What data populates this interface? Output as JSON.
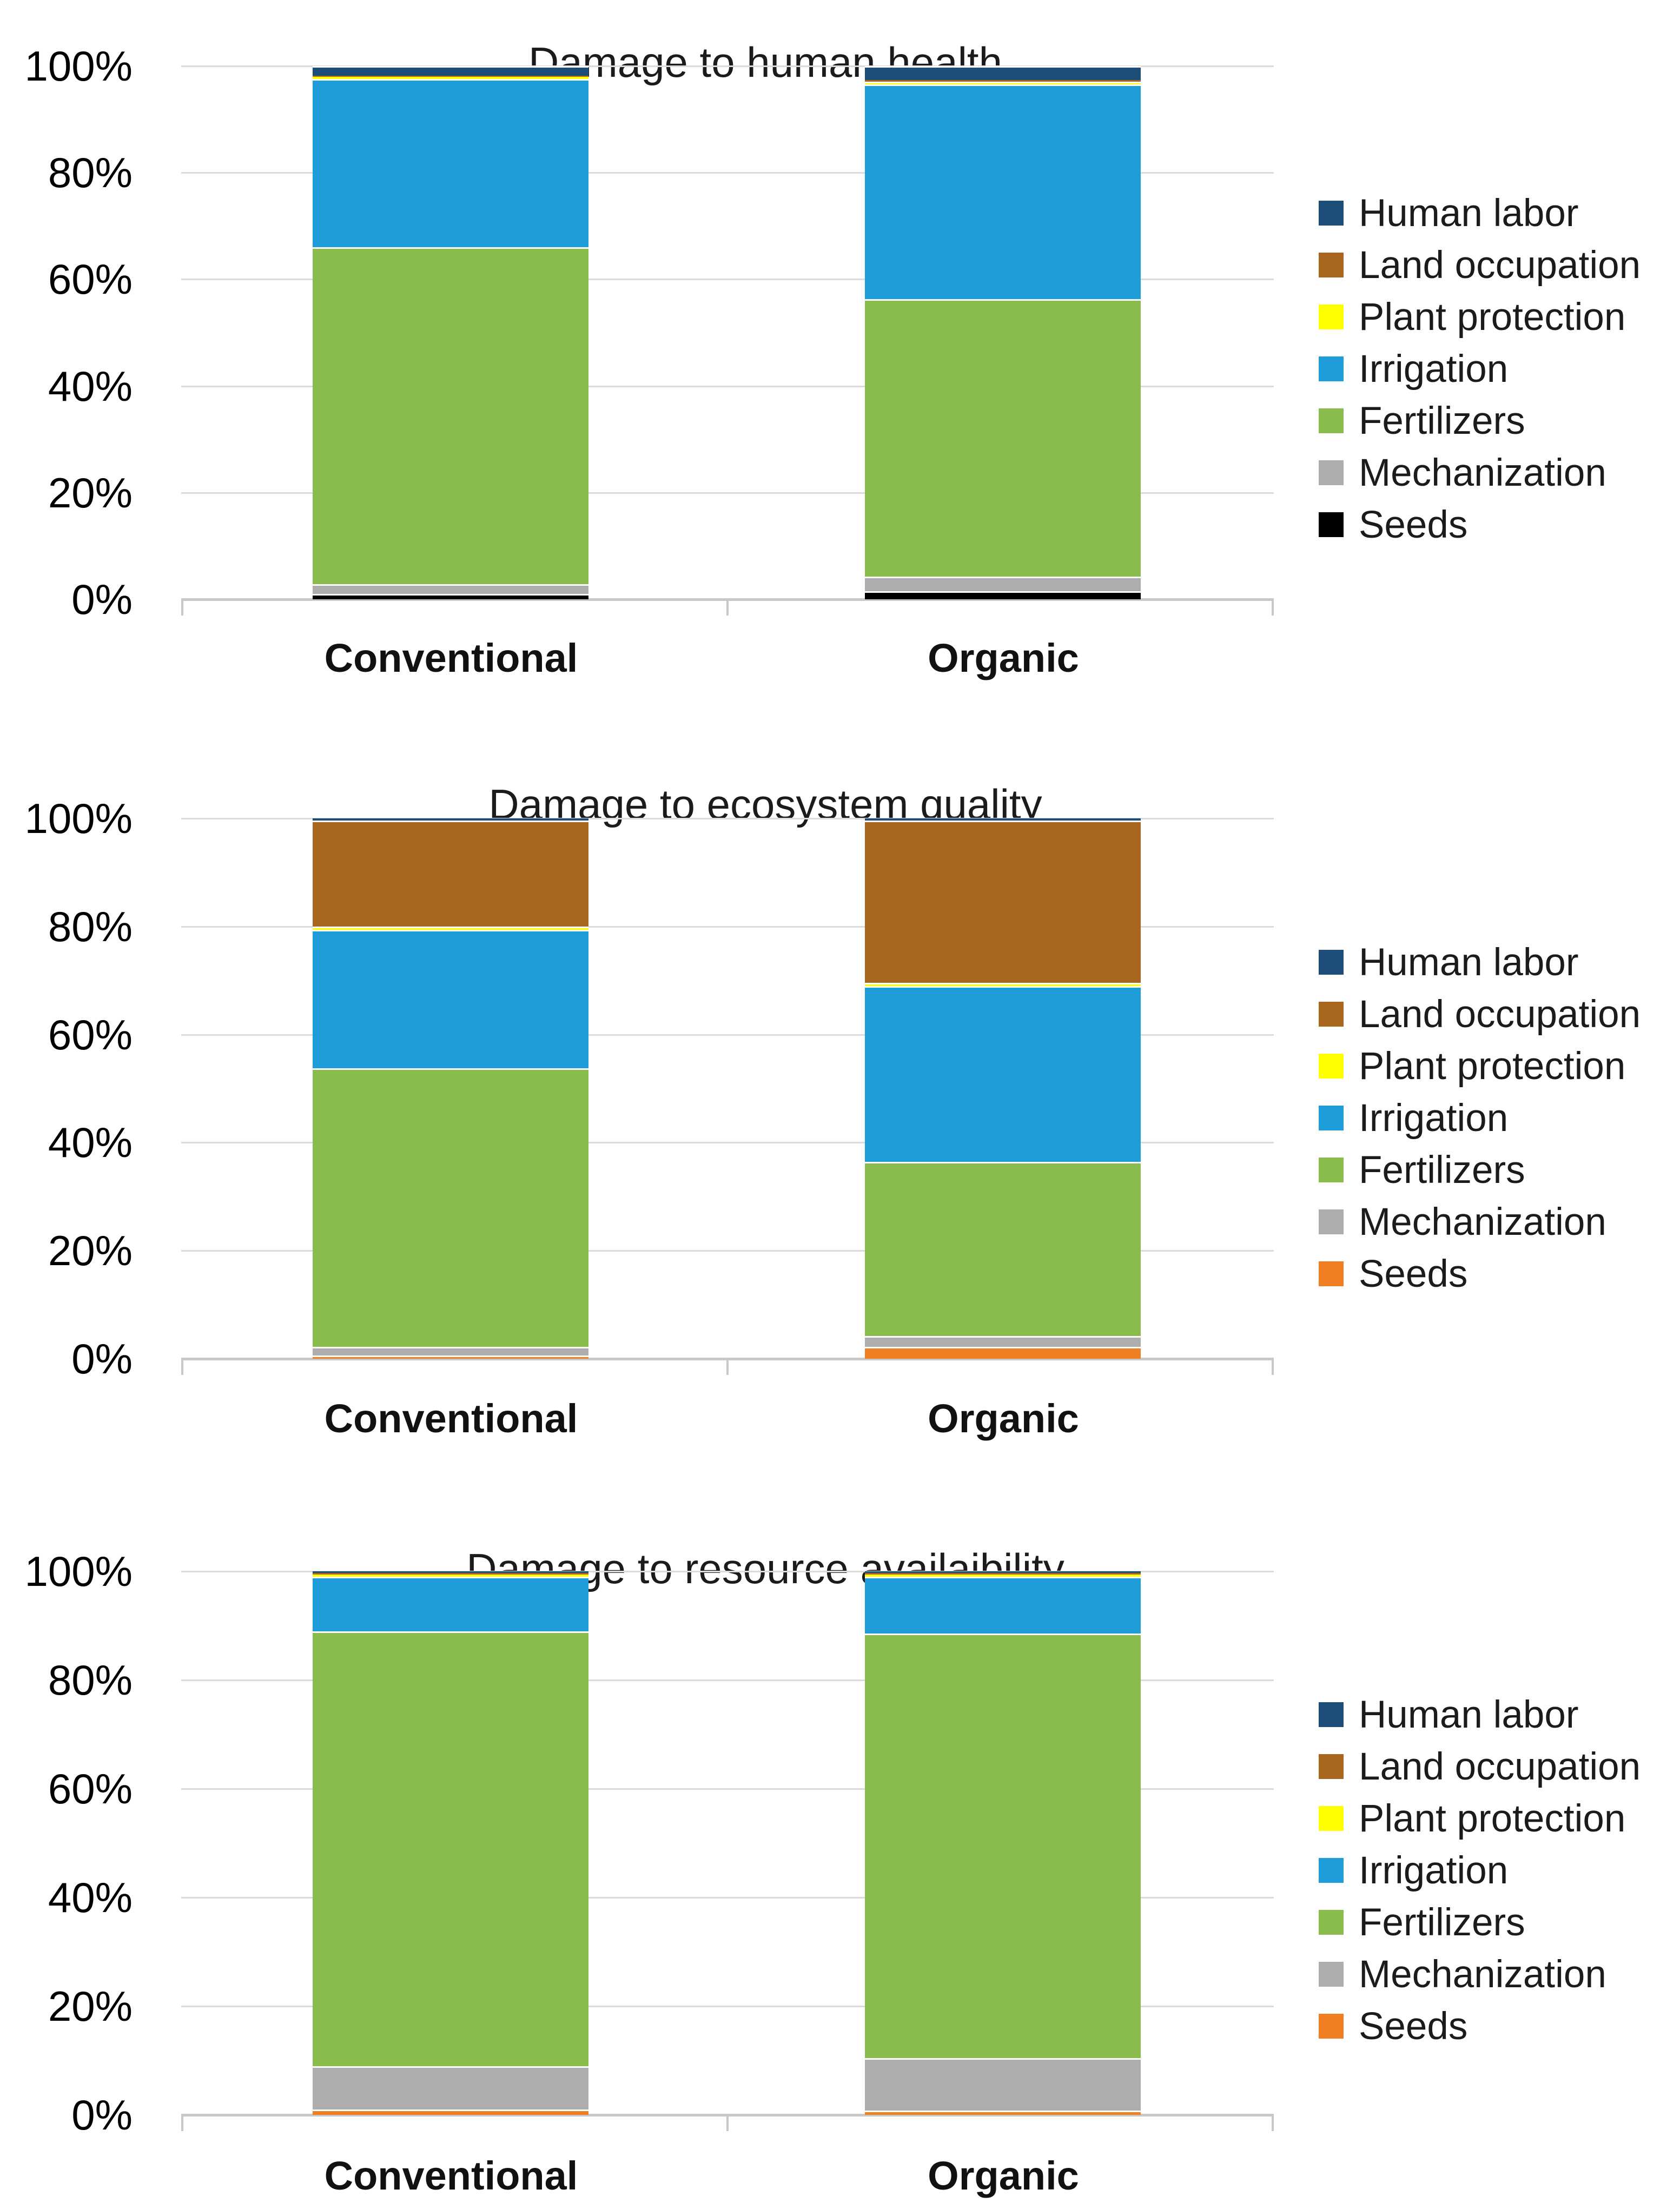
{
  "figure": {
    "background": "#ffffff"
  },
  "y_axis_ticks": [
    "100%",
    "80%",
    "60%",
    "40%",
    "20%",
    "0%"
  ],
  "categories": [
    "Conventional",
    "Organic"
  ],
  "legend_items": [
    "Human labor",
    "Land occupation",
    "Plant protection",
    "Irrigation",
    "Fertilizers",
    "Mechanization",
    "Seeds"
  ],
  "colors": {
    "human_labor": "#1C4E79",
    "land_occupation": "#A9661F",
    "plant_protection": "#FFFF00",
    "irrigation": "#1F9DD9",
    "fertilizers": "#8ABB4D",
    "mechanization": "#ADADAD",
    "seeds_chart1": "#000000",
    "seeds_chart2_3": "#F07E23",
    "gridline": "#DBDBDB",
    "axis_line": "#C8C8C8"
  },
  "chart_data": [
    {
      "type": "bar",
      "stacked": true,
      "stack_order": "first-series-on-top",
      "title": "Damage to human health",
      "categories": [
        "Conventional",
        "Organic"
      ],
      "units": "percent of total",
      "ylim": [
        0,
        100
      ],
      "grid": "horizontal",
      "legend_position": "right",
      "series": [
        {
          "name": "Human labor",
          "color": "#1C4E79",
          "values": [
            1.8,
            2.6
          ]
        },
        {
          "name": "Land occupation",
          "color": "#A9661F",
          "values": [
            0.2,
            0.3
          ]
        },
        {
          "name": "Plant protection",
          "color": "#FFFF00",
          "values": [
            0.4,
            0.6
          ]
        },
        {
          "name": "Irrigation",
          "color": "#1F9DD9",
          "values": [
            31.6,
            40.2
          ]
        },
        {
          "name": "Fertilizers",
          "color": "#8ABB4D",
          "values": [
            63.2,
            52.0
          ]
        },
        {
          "name": "Mechanization",
          "color": "#ADADAD",
          "values": [
            1.8,
            2.8
          ]
        },
        {
          "name": "Seeds",
          "color": "#000000",
          "values": [
            1.0,
            1.5
          ]
        }
      ]
    },
    {
      "type": "bar",
      "stacked": true,
      "stack_order": "first-series-on-top",
      "title": "Damage to ecosystem quality",
      "categories": [
        "Conventional",
        "Organic"
      ],
      "units": "percent of total",
      "ylim": [
        0,
        100
      ],
      "grid": "horizontal",
      "legend_position": "right",
      "series": [
        {
          "name": "Human labor",
          "color": "#1C4E79",
          "values": [
            0.4,
            0.4
          ]
        },
        {
          "name": "Land occupation",
          "color": "#A9661F",
          "values": [
            19.6,
            30.0
          ]
        },
        {
          "name": "Plant protection",
          "color": "#FFFF00",
          "values": [
            0.6,
            0.6
          ]
        },
        {
          "name": "Irrigation",
          "color": "#1F9DD9",
          "values": [
            25.6,
            32.6
          ]
        },
        {
          "name": "Fertilizers",
          "color": "#8ABB4D",
          "values": [
            51.6,
            32.2
          ]
        },
        {
          "name": "Mechanization",
          "color": "#ADADAD",
          "values": [
            1.6,
            2.0
          ]
        },
        {
          "name": "Seeds",
          "color": "#F07E23",
          "values": [
            0.6,
            2.2
          ]
        }
      ]
    },
    {
      "type": "bar",
      "stacked": true,
      "stack_order": "first-series-on-top",
      "title": "Damage to resource availaibility",
      "categories": [
        "Conventional",
        "Organic"
      ],
      "units": "percent of total",
      "ylim": [
        0,
        100
      ],
      "grid": "horizontal",
      "legend_position": "right",
      "series": [
        {
          "name": "Human labor",
          "color": "#1C4E79",
          "values": [
            0.3,
            0.3
          ]
        },
        {
          "name": "Land occupation",
          "color": "#A9661F",
          "values": [
            0.3,
            0.3
          ]
        },
        {
          "name": "Plant protection",
          "color": "#FFFF00",
          "values": [
            0.4,
            0.4
          ]
        },
        {
          "name": "Irrigation",
          "color": "#1F9DD9",
          "values": [
            10.0,
            10.4
          ]
        },
        {
          "name": "Fertilizers",
          "color": "#8ABB4D",
          "values": [
            80.0,
            78.2
          ]
        },
        {
          "name": "Mechanization",
          "color": "#ADADAD",
          "values": [
            8.0,
            9.6
          ]
        },
        {
          "name": "Seeds",
          "color": "#F07E23",
          "values": [
            1.0,
            0.8
          ]
        }
      ]
    }
  ]
}
